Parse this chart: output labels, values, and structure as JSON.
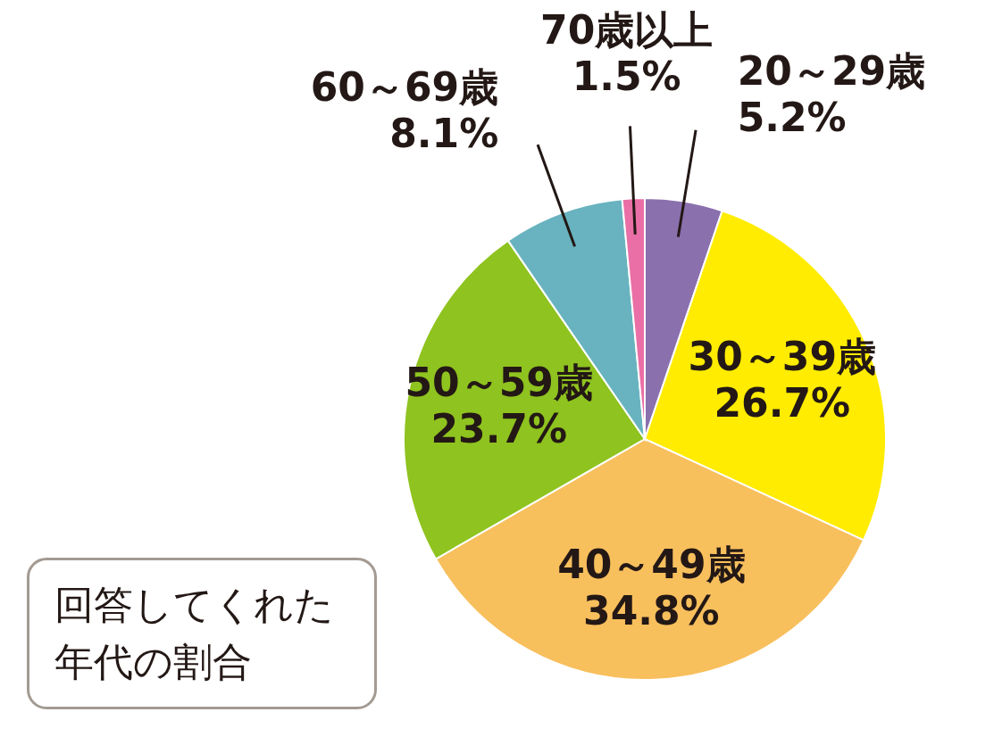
{
  "chart_data": {
    "type": "pie",
    "title": "回答してくれた年代の割合",
    "categories": [
      "20～29歳",
      "30～39歳",
      "40～49歳",
      "50～59歳",
      "60～69歳",
      "70歳以上"
    ],
    "values": [
      5.2,
      26.7,
      34.8,
      23.7,
      8.1,
      1.5
    ],
    "colors": [
      "#8b70ae",
      "#ffec00",
      "#f8bf5d",
      "#8fc31f",
      "#68b3bf",
      "#ea6fa6"
    ],
    "value_labels": [
      "5.2%",
      "26.7%",
      "34.8%",
      "23.7%",
      "8.1%",
      "1.5%"
    ],
    "legend": false
  }
}
